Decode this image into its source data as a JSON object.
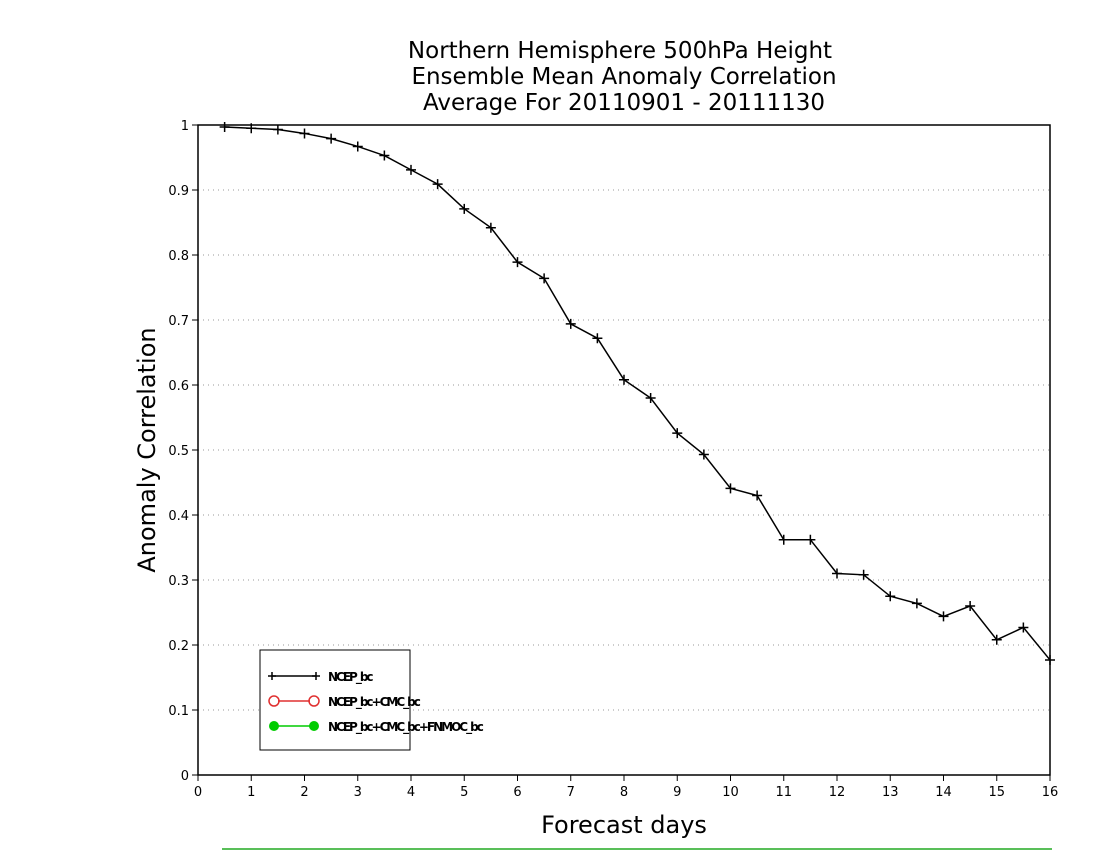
{
  "chart_data": {
    "type": "line",
    "title_lines": [
      "Northern Hemisphere 500hPa Height",
      "Ensemble Mean Anomaly Correlation",
      "Average For 20110901 - 20111130"
    ],
    "xlabel": "Forecast days",
    "ylabel": "Anomaly Correlation",
    "xlim": [
      0,
      16
    ],
    "ylim": [
      0,
      1
    ],
    "xticks": [
      "0",
      "1",
      "2",
      "3",
      "4",
      "5",
      "6",
      "7",
      "8",
      "9",
      "10",
      "11",
      "12",
      "13",
      "14",
      "15",
      "16"
    ],
    "yticks": [
      "0",
      "0.1",
      "0.2",
      "0.3",
      "0.4",
      "0.5",
      "0.6",
      "0.7",
      "0.8",
      "0.9",
      "1"
    ],
    "grid": "horizontal dotted",
    "legend_position": "bottom-left",
    "series": [
      {
        "name": "NCEP_bc",
        "color": "#000000",
        "marker": "plus",
        "x": [
          0.5,
          1.0,
          1.5,
          2.0,
          2.5,
          3.0,
          3.5,
          4.0,
          4.5,
          5.0,
          5.5,
          6.0,
          6.5,
          7.0,
          7.5,
          8.0,
          8.5,
          9.0,
          9.5,
          10.0,
          10.5,
          11.0,
          11.5,
          12.0,
          12.5,
          13.0,
          13.5,
          14.0,
          14.5,
          15.0,
          15.5,
          16.0
        ],
        "y": [
          0.997,
          0.995,
          0.993,
          0.987,
          0.979,
          0.967,
          0.953,
          0.931,
          0.909,
          0.871,
          0.842,
          0.789,
          0.764,
          0.694,
          0.672,
          0.608,
          0.58,
          0.526,
          0.493,
          0.441,
          0.43,
          0.362,
          0.362,
          0.31,
          0.308,
          0.275,
          0.264,
          0.244,
          0.26,
          0.208,
          0.227,
          0.177
        ]
      },
      {
        "name": "NCEP_bc+CMC_bc",
        "color": "#e03030",
        "marker": "open-circle",
        "x": [],
        "y": []
      },
      {
        "name": "NCEP_bc+CMC_bc+FNMOC_bc",
        "color": "#00cc00",
        "marker": "filled-circle",
        "x": [],
        "y": []
      }
    ]
  }
}
